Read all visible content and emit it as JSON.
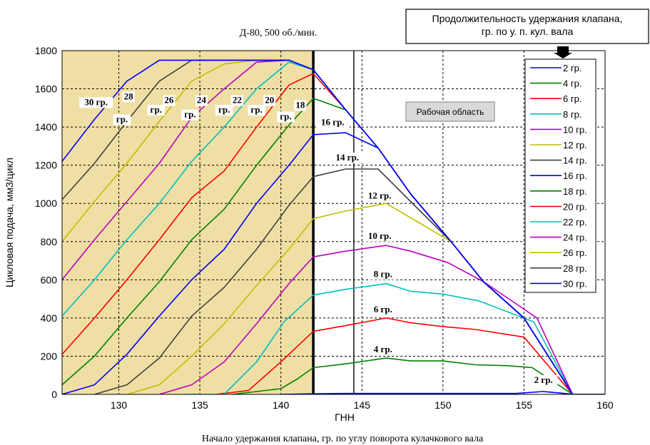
{
  "chart_data": {
    "type": "line",
    "title": "Д-80, 500 об./мин.",
    "xlabel": "Начало удержания клапана, гр. по углу поворота кулачкового вала",
    "xlabel_secondary": "ГНН",
    "ylabel": "Цикловая подача, мм3/цикл",
    "xlim": [
      126.5,
      160
    ],
    "ylim": [
      0,
      1800
    ],
    "xticks": [
      130,
      135,
      140,
      145,
      150,
      155,
      160
    ],
    "yticks": [
      0,
      200,
      400,
      600,
      800,
      1000,
      1200,
      1400,
      1600,
      1800
    ],
    "grid": true,
    "shaded_region_x": [
      126.5,
      142
    ],
    "vlines": [
      {
        "x": 142,
        "style": "thick"
      },
      {
        "x": 144.5,
        "style": "thin"
      }
    ],
    "legend_position": "right",
    "legend_callout": "Продолжительность удержания клапана,\nгр. по у. п. кул. вала",
    "working_area_label": "Рабочая область",
    "series": [
      {
        "name": "2 гр.",
        "color": "#0000ff",
        "x": [
          140,
          142,
          144,
          146.5,
          148,
          150,
          152,
          154.5,
          156.2,
          157.5,
          158,
          160
        ],
        "y": [
          0,
          3,
          5,
          5,
          5,
          5,
          5,
          5,
          15,
          5,
          0,
          0
        ]
      },
      {
        "name": "4  гр.",
        "color": "#008000",
        "x": [
          137,
          140,
          141,
          142,
          144,
          146.5,
          148,
          150,
          152,
          154,
          155.5,
          158,
          160
        ],
        "y": [
          0,
          30,
          80,
          140,
          160,
          190,
          175,
          175,
          155,
          150,
          140,
          0,
          0
        ]
      },
      {
        "name": "6 гр.",
        "color": "#ff0000",
        "x": [
          136,
          138,
          140,
          142,
          144,
          146.5,
          148,
          150,
          152,
          155,
          158,
          160
        ],
        "y": [
          0,
          20,
          170,
          330,
          360,
          400,
          375,
          355,
          340,
          300,
          0,
          0
        ]
      },
      {
        "name": "8 гр.",
        "color": "#00bfbf",
        "x": [
          134,
          136.5,
          138.5,
          140.2,
          142,
          144,
          146.5,
          148,
          150,
          152.2,
          155.6,
          158,
          160
        ],
        "y": [
          0,
          0,
          170,
          380,
          520,
          550,
          580,
          540,
          525,
          490,
          380,
          0,
          0
        ]
      },
      {
        "name": "10 гр.",
        "color": "#bf00bf",
        "x": [
          132.5,
          134.5,
          136.5,
          138.5,
          140.5,
          142,
          144,
          146.5,
          148,
          150.3,
          152.5,
          155.8,
          158,
          160
        ],
        "y": [
          0,
          50,
          170,
          370,
          580,
          720,
          750,
          780,
          750,
          690,
          590,
          400,
          0,
          0
        ]
      },
      {
        "name": "12 гр.",
        "color": "#bfbf00",
        "x": [
          130.5,
          132.5,
          134.5,
          136.5,
          138.5,
          140.5,
          142,
          144,
          146.5,
          148.5,
          150.5,
          152.5,
          155,
          158,
          160
        ],
        "y": [
          0,
          50,
          200,
          370,
          570,
          760,
          920,
          960,
          1000,
          900,
          800,
          590,
          400,
          0,
          0
        ]
      },
      {
        "name": "14 гр.",
        "color": "#404040",
        "x": [
          128.5,
          130.5,
          132.5,
          134.5,
          136.5,
          138.5,
          140.5,
          142,
          144,
          146,
          148,
          150.5,
          152.5,
          155,
          158,
          160
        ],
        "y": [
          0,
          50,
          190,
          410,
          560,
          760,
          990,
          1140,
          1180,
          1180,
          1010,
          800,
          590,
          400,
          0,
          0
        ]
      },
      {
        "name": "16 гр.",
        "color": "#0000ff",
        "x": [
          126.5,
          128.5,
          130.5,
          132.5,
          134.5,
          136.5,
          138.5,
          140.5,
          142,
          144,
          146,
          148,
          150.5,
          152.5,
          155,
          158,
          160
        ],
        "y": [
          0,
          50,
          210,
          410,
          600,
          760,
          1000,
          1200,
          1360,
          1370,
          1290,
          1050,
          800,
          590,
          400,
          0,
          0
        ]
      },
      {
        "name": "18 гр.",
        "color": "#008000",
        "x": [
          126.5,
          128.5,
          130.5,
          132.5,
          134.5,
          136.5,
          138.5,
          140.5,
          142,
          144,
          146,
          148,
          150.5,
          152.5,
          155,
          158,
          160
        ],
        "y": [
          50,
          200,
          400,
          590,
          810,
          970,
          1200,
          1410,
          1550,
          1490,
          1290,
          1050,
          800,
          590,
          400,
          0,
          0
        ]
      },
      {
        "name": "20 гр.",
        "color": "#ff0000",
        "x": [
          126.5,
          128.5,
          130.5,
          132.5,
          134.5,
          136.5,
          138.5,
          140.5,
          142,
          144,
          146,
          148,
          150.5,
          152.5,
          155,
          158,
          160
        ],
        "y": [
          210,
          400,
          600,
          810,
          1030,
          1170,
          1400,
          1620,
          1680,
          1490,
          1290,
          1050,
          800,
          590,
          400,
          0,
          0
        ]
      },
      {
        "name": "22 гр.",
        "color": "#00bfbf",
        "x": [
          126.5,
          128.5,
          130.5,
          132.5,
          134.5,
          136.5,
          138.5,
          140.5,
          142,
          144,
          146,
          148,
          150.5,
          152.5,
          155,
          158,
          160
        ],
        "y": [
          410,
          600,
          810,
          1000,
          1220,
          1400,
          1600,
          1740,
          1700,
          1490,
          1290,
          1050,
          800,
          590,
          400,
          0,
          0
        ]
      },
      {
        "name": "24 гр.",
        "color": "#bf00bf",
        "x": [
          126.5,
          128.5,
          130.5,
          132.5,
          134.5,
          136.5,
          138.5,
          140.5,
          142,
          144,
          146,
          148,
          150.5,
          152.5,
          155,
          158,
          160
        ],
        "y": [
          600,
          810,
          1010,
          1210,
          1450,
          1600,
          1740,
          1750,
          1700,
          1490,
          1290,
          1050,
          800,
          590,
          400,
          0,
          0
        ]
      },
      {
        "name": "26 гр.",
        "color": "#bfbf00",
        "x": [
          126.5,
          128.5,
          130.5,
          132.5,
          134.5,
          136.5,
          138.5,
          140.5,
          142,
          144,
          146,
          148,
          150.5,
          152.5,
          155,
          158,
          160
        ],
        "y": [
          800,
          1010,
          1210,
          1430,
          1640,
          1730,
          1750,
          1750,
          1700,
          1490,
          1290,
          1050,
          800,
          590,
          400,
          0,
          0
        ]
      },
      {
        "name": "28 гр.",
        "color": "#404040",
        "x": [
          126.5,
          128.5,
          130.5,
          132.5,
          134.5,
          136.5,
          138.5,
          140.5,
          142,
          144,
          146,
          148,
          150.5,
          152.5,
          155,
          158,
          160
        ],
        "y": [
          1020,
          1210,
          1430,
          1640,
          1750,
          1750,
          1750,
          1750,
          1700,
          1490,
          1290,
          1050,
          800,
          590,
          400,
          0,
          0
        ]
      },
      {
        "name": "30 гр.",
        "color": "#0000ff",
        "x": [
          126.5,
          128.5,
          130.5,
          132.5,
          134.5,
          136.5,
          138.5,
          140.5,
          142,
          144,
          146,
          148,
          150.5,
          152.5,
          155,
          158,
          160
        ],
        "y": [
          1220,
          1440,
          1640,
          1750,
          1750,
          1750,
          1750,
          1750,
          1700,
          1490,
          1290,
          1050,
          800,
          590,
          400,
          0,
          0
        ]
      }
    ],
    "annotations": [
      {
        "text": "30 гр.",
        "x": 128.6,
        "y": 1515
      },
      {
        "text": "28",
        "x": 130.6,
        "y": 1545
      },
      {
        "text": "гр.",
        "x": 130.2,
        "y": 1425
      },
      {
        "text": "26",
        "x": 133.1,
        "y": 1525
      },
      {
        "text": "гр.",
        "x": 132.3,
        "y": 1475
      },
      {
        "text": "24",
        "x": 135.1,
        "y": 1525
      },
      {
        "text": "гр.",
        "x": 134.4,
        "y": 1450
      },
      {
        "text": "22",
        "x": 137.3,
        "y": 1525
      },
      {
        "text": "гр.",
        "x": 136.5,
        "y": 1475
      },
      {
        "text": "20",
        "x": 139.3,
        "y": 1525
      },
      {
        "text": "гр.",
        "x": 138.5,
        "y": 1475
      },
      {
        "text": "18",
        "x": 141.2,
        "y": 1500
      },
      {
        "text": "гр.",
        "x": 140.3,
        "y": 1440
      },
      {
        "text": "16 гр.",
        "x": 143.2,
        "y": 1410
      },
      {
        "text": "14 гр.",
        "x": 144.1,
        "y": 1225
      },
      {
        "text": "12 гр.",
        "x": 146.1,
        "y": 1025
      },
      {
        "text": "10 гр.",
        "x": 146.1,
        "y": 815
      },
      {
        "text": "8 гр.",
        "x": 146.3,
        "y": 615
      },
      {
        "text": "6 гр.",
        "x": 146.3,
        "y": 430
      },
      {
        "text": "4 гр.",
        "x": 146.3,
        "y": 220
      },
      {
        "text": "2 гр.",
        "x": 156.2,
        "y": 60
      }
    ]
  }
}
